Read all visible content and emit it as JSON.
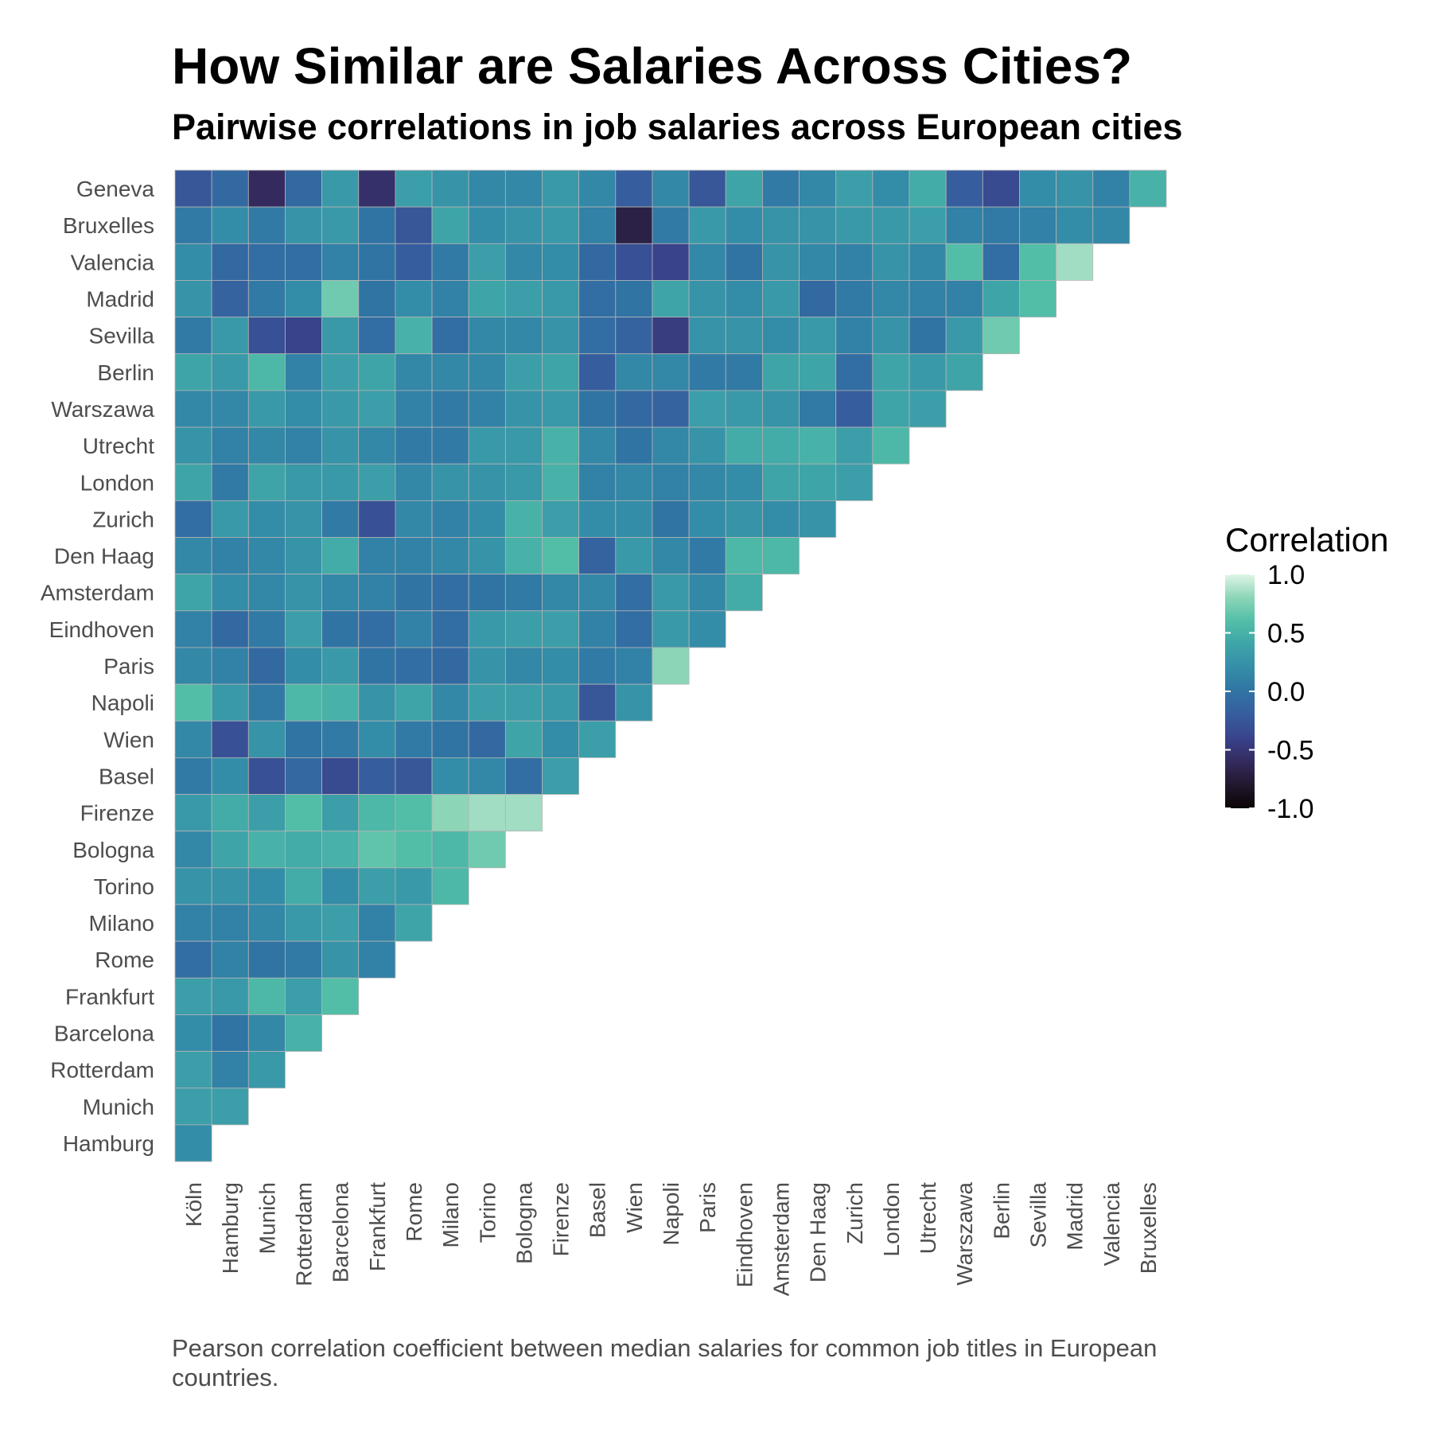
{
  "chart_data": {
    "type": "heatmap",
    "title": "How Similar are Salaries Across Cities?",
    "subtitle": "Pairwise correlations in job salaries across European cities",
    "caption": "Pearson correlation coefficient between median salaries for common job titles in European countries.",
    "x_categories": [
      "Köln",
      "Hamburg",
      "Munich",
      "Rotterdam",
      "Barcelona",
      "Frankfurt",
      "Rome",
      "Milano",
      "Torino",
      "Bologna",
      "Firenze",
      "Basel",
      "Wien",
      "Napoli",
      "Paris",
      "Eindhoven",
      "Amsterdam",
      "Den Haag",
      "Zurich",
      "London",
      "Utrecht",
      "Warszawa",
      "Berlin",
      "Sevilla",
      "Madrid",
      "Valencia",
      "Bruxelles"
    ],
    "y_categories": [
      "Geneva",
      "Bruxelles",
      "Valencia",
      "Madrid",
      "Sevilla",
      "Berlin",
      "Warszawa",
      "Utrecht",
      "London",
      "Zurich",
      "Den Haag",
      "Amsterdam",
      "Eindhoven",
      "Paris",
      "Napoli",
      "Wien",
      "Basel",
      "Firenze",
      "Bologna",
      "Torino",
      "Milano",
      "Rome",
      "Frankfurt",
      "Barcelona",
      "Rotterdam",
      "Munich",
      "Hamburg"
    ],
    "values": [
      [
        -0.25,
        -0.1,
        -0.6,
        -0.1,
        0.3,
        -0.55,
        0.35,
        0.25,
        0.15,
        0.15,
        0.3,
        0.15,
        -0.2,
        0.15,
        -0.25,
        0.4,
        0.05,
        0.15,
        0.35,
        0.2,
        0.45,
        -0.2,
        -0.35,
        0.2,
        0.25,
        0.1,
        0.5
      ],
      [
        0.05,
        0.2,
        0.05,
        0.25,
        0.3,
        0.0,
        -0.25,
        0.4,
        0.2,
        0.25,
        0.3,
        0.1,
        -0.7,
        0.05,
        0.3,
        0.2,
        0.25,
        0.25,
        0.3,
        0.3,
        0.35,
        0.1,
        0.05,
        0.1,
        0.2,
        0.15
      ],
      [
        0.2,
        -0.1,
        -0.05,
        -0.05,
        0.1,
        0.0,
        -0.2,
        0.05,
        0.35,
        0.15,
        0.2,
        -0.1,
        -0.3,
        -0.4,
        0.15,
        0.0,
        0.25,
        0.15,
        0.1,
        0.25,
        0.15,
        0.6,
        -0.05,
        0.6,
        0.85
      ],
      [
        0.25,
        -0.15,
        0.05,
        0.2,
        0.7,
        0.0,
        0.2,
        0.1,
        0.4,
        0.35,
        0.3,
        -0.05,
        0.0,
        0.4,
        0.25,
        0.2,
        0.3,
        -0.1,
        0.05,
        0.15,
        0.1,
        0.1,
        0.4,
        0.6
      ],
      [
        0.05,
        0.3,
        -0.3,
        -0.4,
        0.3,
        -0.05,
        0.5,
        -0.05,
        0.15,
        0.15,
        0.25,
        -0.05,
        -0.15,
        -0.45,
        0.25,
        0.25,
        0.2,
        0.3,
        0.1,
        0.25,
        0.0,
        0.3,
        0.7
      ],
      [
        0.4,
        0.3,
        0.55,
        0.1,
        0.35,
        0.4,
        0.15,
        0.15,
        0.15,
        0.35,
        0.4,
        -0.2,
        0.15,
        0.15,
        0.05,
        0.05,
        0.4,
        0.4,
        -0.05,
        0.4,
        0.3,
        0.4
      ],
      [
        0.15,
        0.15,
        0.3,
        0.2,
        0.3,
        0.35,
        0.1,
        0.05,
        0.1,
        0.25,
        0.3,
        0.0,
        -0.1,
        -0.15,
        0.35,
        0.3,
        0.25,
        0.05,
        -0.2,
        0.4,
        0.35
      ],
      [
        0.25,
        0.1,
        0.15,
        0.1,
        0.25,
        0.15,
        0.05,
        0.05,
        0.3,
        0.3,
        0.5,
        0.15,
        0.0,
        0.15,
        0.25,
        0.45,
        0.45,
        0.5,
        0.35,
        0.55
      ],
      [
        0.4,
        0.05,
        0.4,
        0.3,
        0.3,
        0.35,
        0.15,
        0.25,
        0.25,
        0.3,
        0.5,
        0.1,
        0.15,
        0.1,
        0.15,
        0.2,
        0.4,
        0.4,
        0.35
      ],
      [
        -0.05,
        0.3,
        0.2,
        0.25,
        0.05,
        -0.3,
        0.15,
        0.1,
        0.2,
        0.5,
        0.35,
        0.2,
        0.2,
        0.0,
        0.2,
        0.25,
        0.2,
        0.25
      ],
      [
        0.15,
        0.1,
        0.15,
        0.25,
        0.45,
        0.1,
        0.1,
        0.15,
        0.25,
        0.5,
        0.6,
        -0.15,
        0.3,
        0.15,
        0.05,
        0.55,
        0.55
      ],
      [
        0.4,
        0.2,
        0.15,
        0.25,
        0.15,
        0.1,
        0.0,
        -0.05,
        0.0,
        0.05,
        0.15,
        0.15,
        -0.05,
        0.3,
        0.15,
        0.45
      ],
      [
        0.1,
        -0.1,
        0.05,
        0.35,
        0.0,
        -0.05,
        0.1,
        -0.05,
        0.3,
        0.35,
        0.35,
        0.1,
        -0.05,
        0.3,
        0.2
      ],
      [
        0.15,
        0.1,
        -0.1,
        0.2,
        0.3,
        0.0,
        -0.05,
        -0.1,
        0.25,
        0.15,
        0.2,
        0.05,
        0.1,
        0.8
      ],
      [
        0.6,
        0.3,
        0.05,
        0.55,
        0.5,
        0.25,
        0.4,
        0.15,
        0.35,
        0.35,
        0.3,
        -0.25,
        0.25
      ],
      [
        0.15,
        -0.3,
        0.25,
        0.0,
        0.05,
        0.2,
        0.05,
        0.0,
        -0.1,
        0.4,
        0.2,
        0.35
      ],
      [
        0.05,
        0.2,
        -0.3,
        -0.1,
        -0.35,
        -0.2,
        -0.25,
        0.2,
        0.15,
        -0.05,
        0.35
      ],
      [
        0.3,
        0.45,
        0.35,
        0.6,
        0.35,
        0.55,
        0.6,
        0.8,
        0.85,
        0.85
      ],
      [
        0.15,
        0.4,
        0.5,
        0.45,
        0.5,
        0.65,
        0.6,
        0.55,
        0.7
      ],
      [
        0.25,
        0.25,
        0.2,
        0.45,
        0.2,
        0.35,
        0.3,
        0.55
      ],
      [
        0.1,
        0.1,
        0.15,
        0.3,
        0.35,
        0.1,
        0.4
      ],
      [
        -0.05,
        0.1,
        0.0,
        0.05,
        0.25,
        0.1
      ],
      [
        0.35,
        0.3,
        0.55,
        0.35,
        0.6
      ],
      [
        0.2,
        0.0,
        0.15,
        0.5
      ],
      [
        0.35,
        0.1,
        0.3
      ],
      [
        0.35,
        0.35
      ],
      [
        0.2
      ]
    ],
    "range": [
      -1,
      1
    ],
    "legend": {
      "title": "Correlation",
      "position": "right",
      "ticks": [
        1.0,
        0.5,
        0.0,
        -0.5,
        -1.0
      ],
      "tick_labels": [
        "1.0",
        "0.5",
        "0.0",
        "-0.5",
        "-1.0"
      ]
    },
    "colorscale": "mako",
    "grid": false
  }
}
